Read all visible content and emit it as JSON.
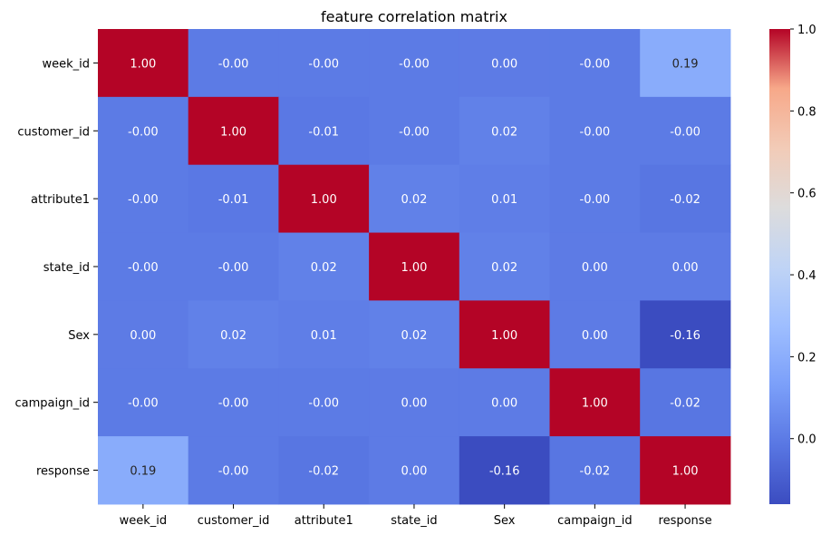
{
  "chart_data": {
    "type": "heatmap",
    "title": "feature correlation matrix",
    "labels": [
      "week_id",
      "customer_id",
      "attribute1",
      "state_id",
      "Sex",
      "campaign_id",
      "response"
    ],
    "matrix": [
      [
        1.0,
        -0.001,
        -0.001,
        -0.001,
        0.001,
        -0.001,
        0.19
      ],
      [
        -0.001,
        1.0,
        -0.01,
        -0.001,
        0.02,
        -0.001,
        -0.001
      ],
      [
        -0.001,
        -0.01,
        1.0,
        0.02,
        0.01,
        -0.001,
        -0.02
      ],
      [
        -0.001,
        -0.001,
        0.02,
        1.0,
        0.02,
        0.001,
        0.001
      ],
      [
        0.001,
        0.02,
        0.01,
        0.02,
        1.0,
        0.001,
        -0.16
      ],
      [
        -0.001,
        -0.001,
        -0.001,
        0.001,
        0.001,
        1.0,
        -0.02
      ],
      [
        0.19,
        -0.001,
        -0.02,
        0.001,
        -0.16,
        -0.02,
        1.0
      ]
    ],
    "cell_labels": [
      [
        "1.00",
        "-0.00",
        "-0.00",
        "-0.00",
        "0.00",
        "-0.00",
        "0.19"
      ],
      [
        "-0.00",
        "1.00",
        "-0.01",
        "-0.00",
        "0.02",
        "-0.00",
        "-0.00"
      ],
      [
        "-0.00",
        "-0.01",
        "1.00",
        "0.02",
        "0.01",
        "-0.00",
        "-0.02"
      ],
      [
        "-0.00",
        "-0.00",
        "0.02",
        "1.00",
        "0.02",
        "0.00",
        "0.00"
      ],
      [
        "0.00",
        "0.02",
        "0.01",
        "0.02",
        "1.00",
        "0.00",
        "-0.16"
      ],
      [
        "-0.00",
        "-0.00",
        "-0.00",
        "0.00",
        "0.00",
        "1.00",
        "-0.02"
      ],
      [
        "0.19",
        "-0.00",
        "-0.02",
        "0.00",
        "-0.16",
        "-0.02",
        "1.00"
      ]
    ],
    "colormap": "coolwarm",
    "colorbar": {
      "vmin": -0.16,
      "vmax": 1.0,
      "ticks": [
        0.0,
        0.2,
        0.4,
        0.6,
        0.8,
        1.0
      ],
      "tick_labels": [
        "0.0",
        "0.2",
        "0.4",
        "0.6",
        "0.8",
        "1.0"
      ]
    }
  }
}
